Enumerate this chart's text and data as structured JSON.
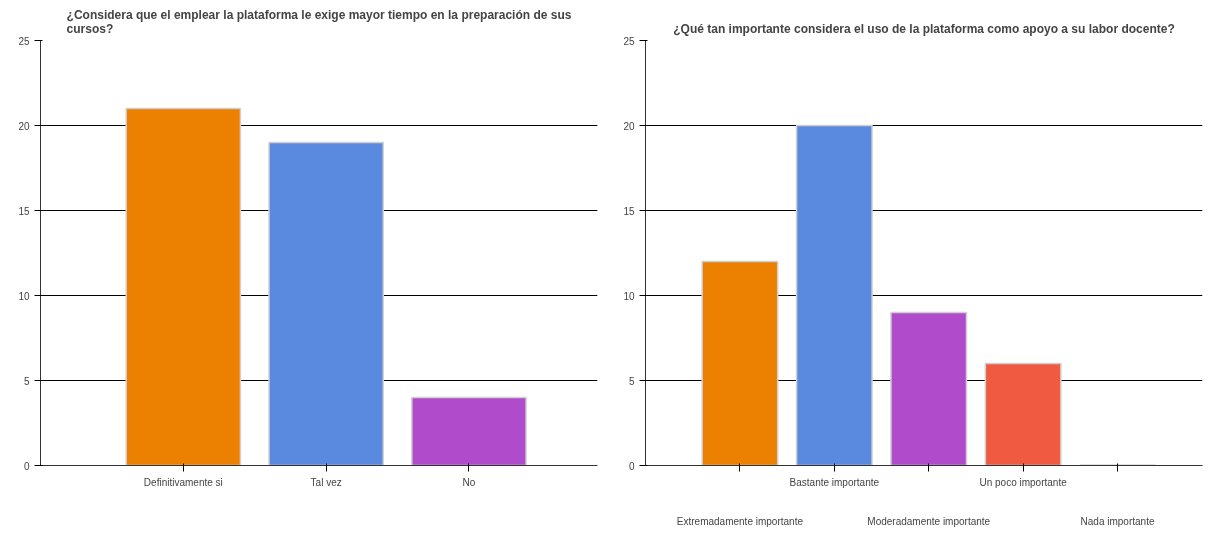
{
  "chart_data": [
    {
      "type": "bar",
      "title": "¿Considera que el emplear la plataforma le exige mayor tiempo en la preparación de sus cursos?",
      "categories": [
        "Definitivamente si",
        "Tal vez",
        "No"
      ],
      "values": [
        21,
        19,
        4
      ],
      "colors": [
        "#ec8000",
        "#5a8ae0",
        "#b04ccc"
      ],
      "ylim": [
        0,
        25
      ],
      "yticks": [
        0,
        5,
        10,
        15,
        20,
        25
      ],
      "grid": "y"
    },
    {
      "type": "bar",
      "title": "¿Qué tan importante considera el uso de la plataforma como apoyo a su labor docente?",
      "categories": [
        "Extremadamente importante",
        "Bastante importante",
        "Moderadamente importante",
        "Un poco importante",
        "Nada importante"
      ],
      "values": [
        12,
        20,
        9,
        6,
        0
      ],
      "colors": [
        "#ec8000",
        "#5a8ae0",
        "#b04ccc",
        "#f05a40",
        "#888888"
      ],
      "ylim": [
        0,
        25
      ],
      "yticks": [
        0,
        5,
        10,
        15,
        20,
        25
      ],
      "grid": "y"
    }
  ]
}
